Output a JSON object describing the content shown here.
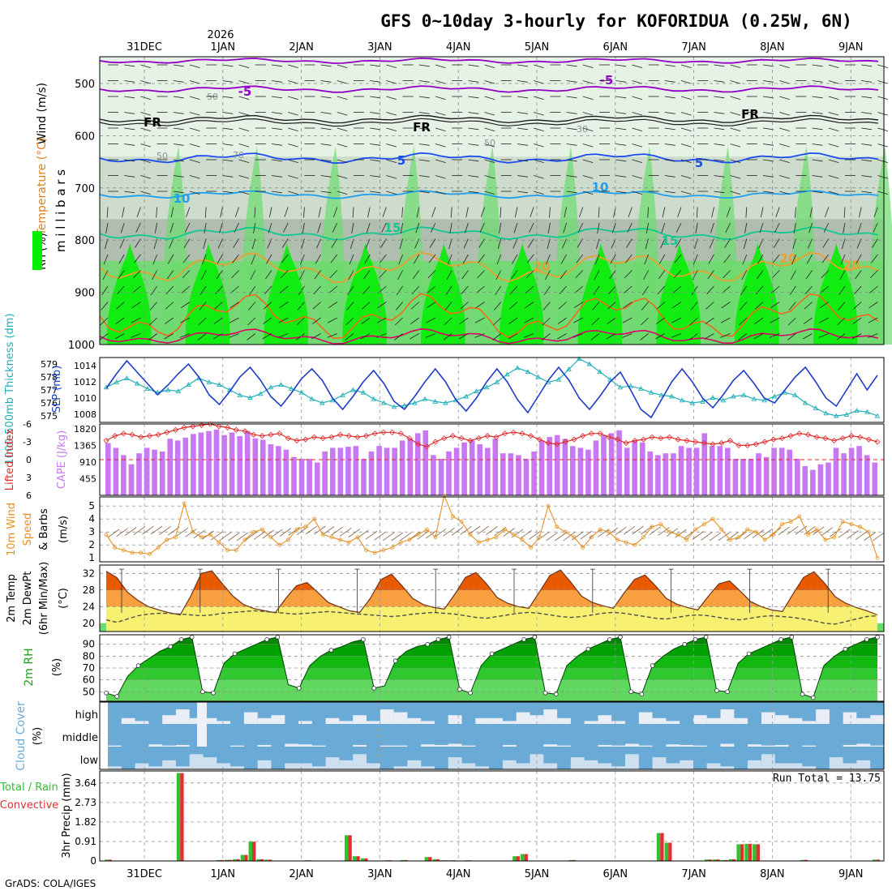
{
  "title": "GFS 0~10day 3-hourly for KOFORIDUA (0.25W, 6N)",
  "footer": "GrADS: COLA/IGES",
  "year_label": "2026",
  "colors": {
    "rh_light": "#e6f2e6",
    "rh_mid": "#c8d8c8",
    "rh_gray": "#a9b9a9",
    "rh_green": "#6cdc6c",
    "rh_bright": "#00f000",
    "iso_purple": "#9400c8",
    "iso_blue": "#1c4cf0",
    "iso_cyan": "#1ea0f0",
    "iso_teal": "#10c890",
    "iso_orange": "#e8a030",
    "iso_deep_orange": "#f06a1c",
    "iso_magenta": "#e0006a",
    "thickness": "#20b0b8",
    "slp": "#1c3cc8",
    "lifted_index": "#e02a2a",
    "cape": "#c878f0",
    "wind10": "#e89020",
    "barb": "#806040",
    "temp_dark": "#e85a00",
    "temp_mid": "#f8a040",
    "temp_light": "#f8f070",
    "dewpoint": "#505050",
    "rh_fill_dark": "#00a000",
    "cloud_sky": "#6aaad6",
    "cloud_fill": "#f0f0f8",
    "precip_total": "#30c030",
    "precip_conv": "#e03030"
  },
  "time_axis": {
    "top_labels": [
      "31DEC",
      "1JAN",
      "2JAN",
      "3JAN",
      "4JAN",
      "5JAN",
      "6JAN",
      "7JAN",
      "8JAN",
      "9JAN"
    ],
    "bottom_labels": [
      "31DEC",
      "1JAN",
      "2JAN",
      "3JAN",
      "4JAN",
      "5JAN",
      "6JAN",
      "7JAN",
      "8JAN",
      "9JAN"
    ]
  },
  "panels": {
    "upper": {
      "ylabel_wind": "Wind (m/s)",
      "ylabel_temp": "Temperature (°C)",
      "ylabel_rh": "RH (%)",
      "ylabel_mb": "m i l l i b a r s",
      "yticks": [
        "500",
        "600",
        "700",
        "800",
        "900",
        "1000"
      ],
      "isotherm_labels": [
        "-5",
        "-5",
        "FR",
        "FR",
        "FR",
        "5",
        "5",
        "10",
        "10",
        "15",
        "15",
        "20",
        "20",
        "20"
      ],
      "rh_labels": [
        "50",
        "50",
        "30",
        "50",
        "70"
      ]
    },
    "thickness": {
      "ylabel_left": "1000-500mb Thickness (dm)",
      "ylabel_right": "SLP (mb)",
      "left_ticks": [
        "575",
        "576",
        "577",
        "578",
        "579"
      ],
      "right_ticks": [
        "1008",
        "1010",
        "1012",
        "1014"
      ]
    },
    "stability": {
      "ylabel_left": "Lifted Index",
      "ylabel_right": "CAPE (J/kg)",
      "left_ticks": [
        "6",
        "3",
        "0",
        "-3",
        "-6"
      ],
      "right_ticks": [
        "455",
        "910",
        "1365",
        "1820"
      ]
    },
    "wind": {
      "ylabel1": "10m Wind",
      "ylabel2": "Speed",
      "ylabel3": "& Barbs",
      "unit": "(m/s)",
      "ticks": [
        "1",
        "2",
        "3",
        "4",
        "5"
      ]
    },
    "temp": {
      "ylabel1": "2m Temp",
      "ylabel2": "2m DewPt",
      "ylabel3": "(6hr Min/Max)",
      "unit": "(°C)",
      "ticks": [
        "20",
        "24",
        "28",
        "32"
      ]
    },
    "rh": {
      "ylabel": "2m RH",
      "unit": "(%)",
      "ticks": [
        "50",
        "60",
        "70",
        "80",
        "90"
      ]
    },
    "cloud": {
      "ylabel": "Cloud Cover",
      "unit": "(%)",
      "levels": [
        "high",
        "middle",
        "low"
      ]
    },
    "precip": {
      "ylabel_left1": "Total / Rain",
      "ylabel_left2": "Convective",
      "ylabel": "3hr Precip (mm)",
      "ticks": [
        "0",
        "0.91",
        "1.82",
        "2.73",
        "3.64"
      ],
      "run_total": "Run Total = 13.75"
    }
  },
  "chart_data": [
    {
      "type": "line",
      "name": "1000-500mb thickness",
      "ylabel": "1000-500mb Thickness (dm)",
      "ylim": [
        574.5,
        579.5
      ],
      "values": [
        577.2,
        577.6,
        577.9,
        577.5,
        577.1,
        576.8,
        577.0,
        576.9,
        577.4,
        577.9,
        577.6,
        577.4,
        577.0,
        576.6,
        576.4,
        576.7,
        577.2,
        577.4,
        577.1,
        576.8,
        576.3,
        576.0,
        576.2,
        576.6,
        577.0,
        576.8,
        576.3,
        576.0,
        575.7,
        575.8,
        576.0,
        576.3,
        576.1,
        576.0,
        576.2,
        576.5,
        576.9,
        577.2,
        577.6,
        578.2,
        578.7,
        578.4,
        578.0,
        577.6,
        577.8,
        578.6,
        579.4,
        579.0,
        578.4,
        577.8,
        577.2,
        577.3,
        577.1,
        576.8,
        576.6,
        576.5,
        576.2,
        576.0,
        576.1,
        576.4,
        576.2,
        576.5,
        576.6,
        576.3,
        576.2,
        576.5,
        576.8,
        576.6,
        576.0,
        575.6,
        575.2,
        575.0,
        575.1,
        575.4,
        575.3,
        575.0
      ]
    },
    {
      "type": "line",
      "name": "SLP",
      "ylabel": "SLP (mb)",
      "ylim": [
        1007,
        1015
      ],
      "values": [
        1011.2,
        1013.0,
        1014.6,
        1013.2,
        1011.8,
        1010.4,
        1011.6,
        1013.0,
        1014.2,
        1012.6,
        1010.4,
        1009.2,
        1010.8,
        1012.6,
        1013.8,
        1012.2,
        1010.2,
        1009.0,
        1010.6,
        1012.4,
        1013.6,
        1012.2,
        1010.0,
        1008.6,
        1010.2,
        1012.0,
        1013.4,
        1011.8,
        1009.6,
        1008.6,
        1010.2,
        1012.0,
        1013.6,
        1012.0,
        1009.8,
        1008.4,
        1010.0,
        1012.0,
        1013.6,
        1012.0,
        1009.8,
        1008.2,
        1010.2,
        1012.2,
        1013.8,
        1012.2,
        1010.0,
        1008.6,
        1010.2,
        1012.0,
        1013.2,
        1011.0,
        1008.6,
        1007.6,
        1009.8,
        1012.0,
        1013.6,
        1012.0,
        1010.0,
        1008.8,
        1010.4,
        1012.2,
        1013.4,
        1011.8,
        1010.0,
        1009.4,
        1011.0,
        1012.6,
        1013.8,
        1012.0,
        1010.0,
        1009.0,
        1011.0,
        1013.0,
        1011.0,
        1012.8
      ]
    },
    {
      "type": "bar",
      "name": "CAPE",
      "ylabel": "CAPE (J/kg)",
      "ylim": [
        0,
        1820
      ],
      "values": [
        1430,
        1300,
        1100,
        850,
        1150,
        1300,
        1250,
        1200,
        1550,
        1500,
        1580,
        1680,
        1720,
        1760,
        1800,
        1650,
        1720,
        1620,
        1760,
        1560,
        1520,
        1400,
        1350,
        1250,
        1050,
        1000,
        1000,
        900,
        1200,
        1300,
        1300,
        1330,
        1350,
        1000,
        1200,
        1350,
        1300,
        1300,
        1500,
        1550,
        1700,
        1780,
        1100,
        1000,
        1200,
        1300,
        1450,
        1500,
        1400,
        1300,
        1550,
        1150,
        1150,
        1100,
        1000,
        1200,
        1500,
        1600,
        1650,
        1550,
        1350,
        1300,
        1250,
        1500,
        1650,
        1700,
        1780,
        1300,
        1500,
        1450,
        1200,
        1100,
        1150,
        1150,
        1350,
        1300,
        1300,
        1700,
        1350,
        1350,
        1300,
        1000,
        1000,
        1000,
        1150,
        1050,
        1300,
        1300,
        1250,
        1000,
        800,
        700,
        850,
        900,
        1300,
        1150,
        1300,
        1350,
        1100,
        900
      ]
    },
    {
      "type": "line",
      "name": "Lifted Index",
      "ylabel": "Lifted Index",
      "ylim": [
        6,
        -6
      ],
      "values": [
        -3.2,
        -4.0,
        -4.4,
        -4.2,
        -3.8,
        -4.0,
        -4.2,
        -4.6,
        -5.0,
        -5.4,
        -5.6,
        -5.8,
        -6.0,
        -5.6,
        -5.4,
        -5.0,
        -4.8,
        -4.2,
        -4.0,
        -4.2,
        -4.4,
        -3.6,
        -3.2,
        -3.4,
        -3.8,
        -3.6,
        -3.8,
        -4.2,
        -4.0,
        -3.8,
        -4.0,
        -4.4,
        -4.6,
        -4.6,
        -4.4,
        -3.6,
        -2.6,
        -2.2,
        -3.0,
        -3.6,
        -4.0,
        -3.6,
        -3.2,
        -3.6,
        -4.0,
        -3.8,
        -4.4,
        -4.6,
        -4.4,
        -4.0,
        -3.4,
        -2.8,
        -2.6,
        -3.0,
        -3.4,
        -4.0,
        -4.4,
        -4.4,
        -3.8,
        -3.4,
        -2.8,
        -3.2,
        -3.4,
        -3.8,
        -3.6,
        -3.8,
        -3.4,
        -3.2,
        -3.0,
        -2.8,
        -2.6,
        -2.8,
        -3.2,
        -2.4,
        -2.4,
        -2.6,
        -3.0,
        -3.4,
        -3.6,
        -4.0,
        -4.4,
        -4.2,
        -3.8,
        -3.6,
        -3.2,
        -3.6,
        -4.0,
        -3.8,
        -3.4,
        -3.0
      ]
    },
    {
      "type": "line",
      "name": "10m wind speed",
      "ylabel": "10m Wind Speed & Barbs (m/s)",
      "ylim": [
        0.7,
        5.7
      ],
      "values": [
        2.8,
        1.8,
        1.6,
        1.4,
        1.4,
        1.3,
        1.8,
        2.4,
        2.6,
        5.2,
        3.0,
        2.6,
        2.8,
        2.2,
        1.6,
        1.6,
        2.4,
        3.0,
        3.2,
        2.6,
        2.0,
        2.4,
        3.2,
        3.4,
        4.0,
        2.8,
        2.6,
        2.4,
        2.2,
        2.6,
        1.6,
        1.4,
        1.6,
        1.8,
        2.2,
        2.4,
        2.8,
        3.2,
        2.6,
        5.8,
        4.2,
        3.8,
        2.8,
        2.2,
        2.4,
        2.6,
        3.2,
        2.8,
        2.4,
        1.8,
        2.6,
        5.0,
        3.4,
        3.0,
        2.6,
        1.8,
        2.6,
        3.2,
        3.0,
        2.4,
        2.2,
        2.0,
        2.6,
        3.4,
        3.6,
        3.0,
        2.8,
        2.4,
        3.2,
        3.6,
        4.0,
        3.2,
        2.4,
        2.6,
        3.2,
        3.0,
        2.4,
        2.8,
        3.6,
        3.8,
        4.2,
        2.8,
        3.2,
        2.4,
        2.6,
        3.8,
        3.6,
        3.4,
        3.0,
        1.0
      ]
    },
    {
      "type": "area",
      "name": "2m temperature",
      "ylabel": "2m Temp 2m DewPt (6hr Min/Max) (°C)",
      "ylim": [
        18,
        34
      ],
      "values": [
        32.5,
        31.0,
        27.5,
        25.5,
        24.0,
        23.2,
        22.5,
        22.0,
        26.5,
        32.0,
        32.6,
        29.5,
        26.5,
        24.5,
        23.5,
        23.0,
        22.5,
        26.0,
        29.0,
        29.8,
        27.5,
        25.0,
        24.0,
        23.0,
        22.6,
        26.0,
        30.5,
        31.8,
        29.0,
        26.0,
        24.5,
        23.8,
        23.4,
        27.0,
        31.0,
        32.2,
        29.5,
        26.2,
        24.8,
        24.0,
        23.6,
        27.5,
        31.5,
        32.8,
        29.8,
        26.5,
        25.0,
        24.2,
        23.6,
        27.2,
        30.5,
        31.6,
        29.0,
        26.0,
        24.6,
        23.8,
        23.2,
        26.5,
        29.5,
        30.2,
        27.8,
        25.2,
        24.0,
        23.2,
        22.8,
        27.0,
        31.0,
        32.4,
        29.6,
        26.4,
        24.8,
        23.8,
        23.0,
        22.0
      ]
    },
    {
      "type": "line",
      "name": "2m dewpoint",
      "ylabel": "2m DewPt (°C)",
      "ylim": [
        18,
        34
      ],
      "values": [
        20.8,
        20.2,
        21.0,
        21.8,
        22.2,
        22.4,
        22.4,
        22.2,
        22.0,
        21.8,
        22.0,
        22.4,
        22.6,
        22.8,
        23.0,
        22.8,
        22.6,
        22.4,
        22.2,
        22.4,
        22.6,
        22.8,
        22.6,
        22.4,
        22.2,
        22.0,
        21.8,
        21.6,
        21.8,
        22.2,
        22.4,
        22.6,
        22.4,
        22.2,
        21.8,
        21.4,
        21.2,
        21.6,
        22.0,
        22.4,
        22.6,
        22.4,
        22.0,
        21.6,
        21.4,
        21.6,
        22.0,
        22.4,
        22.6,
        22.4,
        22.0,
        21.6,
        21.2,
        21.0,
        21.4,
        21.8,
        22.0,
        21.8,
        21.4,
        21.0,
        20.8,
        21.2,
        21.6,
        21.8,
        21.6,
        21.4,
        21.0,
        20.6,
        20.0,
        19.8,
        20.4,
        21.0,
        21.6,
        21.8
      ]
    },
    {
      "type": "area",
      "name": "2m RH",
      "ylabel": "2m RH (%)",
      "ylim": [
        42,
        98
      ],
      "values": [
        49,
        46,
        63,
        72,
        78,
        84,
        88,
        94,
        96,
        50,
        49,
        74,
        82,
        86,
        90,
        94,
        96,
        56,
        53,
        72,
        80,
        85,
        88,
        92,
        94,
        53,
        55,
        76,
        84,
        88,
        90,
        94,
        96,
        52,
        49,
        72,
        82,
        86,
        90,
        94,
        96,
        49,
        48,
        72,
        80,
        86,
        90,
        94,
        96,
        50,
        48,
        72,
        80,
        86,
        90,
        94,
        96,
        51,
        50,
        74,
        82,
        86,
        90,
        94,
        96,
        48,
        45,
        72,
        80,
        86,
        90,
        94,
        96
      ]
    },
    {
      "type": "bar",
      "name": "3hr precipitation",
      "ylabel": "3hr Precip (mm)",
      "ylim": [
        0,
        4.2
      ],
      "values": [
        0.06,
        0,
        0,
        0,
        0,
        0,
        0,
        0,
        0,
        4.1,
        0,
        0,
        0,
        0,
        0.04,
        0.05,
        0.08,
        0.28,
        0.9,
        0.08,
        0.06,
        0,
        0,
        0,
        0,
        0.03,
        0,
        0,
        0,
        0,
        1.2,
        0.22,
        0.12,
        0,
        0,
        0.03,
        0,
        0.04,
        0,
        0,
        0.18,
        0.08,
        0.03,
        0.03,
        0,
        0.03,
        0,
        0,
        0,
        0,
        0,
        0.22,
        0.32,
        0,
        0,
        0,
        0,
        0,
        0.04,
        0,
        0,
        0,
        0,
        0,
        0,
        0,
        0,
        0,
        0,
        1.3,
        0.85,
        0,
        0,
        0,
        0,
        0.07,
        0.07,
        0.04,
        0.08,
        0.78,
        0.8,
        0.78,
        0,
        0,
        0,
        0,
        0,
        0.05,
        0,
        0,
        0,
        0,
        0,
        0,
        0,
        0,
        0.06
      ]
    }
  ]
}
